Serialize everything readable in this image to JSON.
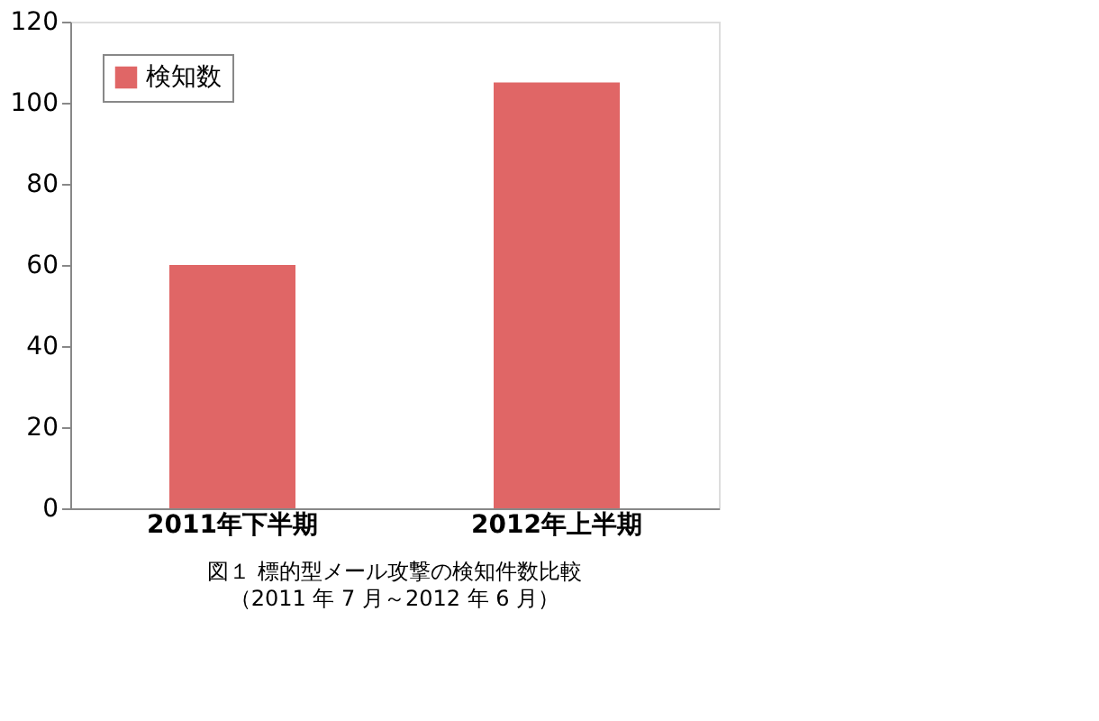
{
  "chart_data": {
    "type": "bar",
    "title": "図１ 標的型メール攻撃の検知件数比較",
    "annotations": [
      "（2011 年 7 月～2012 年 6 月）"
    ],
    "categories": [
      "2011年下半期",
      "2012年上半期"
    ],
    "series": [
      {
        "name": "検知数",
        "color": "#e06666",
        "values": [
          60,
          105
        ]
      }
    ],
    "ylim": [
      0,
      120
    ],
    "yticks": [
      0,
      20,
      40,
      60,
      80,
      100,
      120
    ],
    "grid": false,
    "legend": "top left"
  }
}
